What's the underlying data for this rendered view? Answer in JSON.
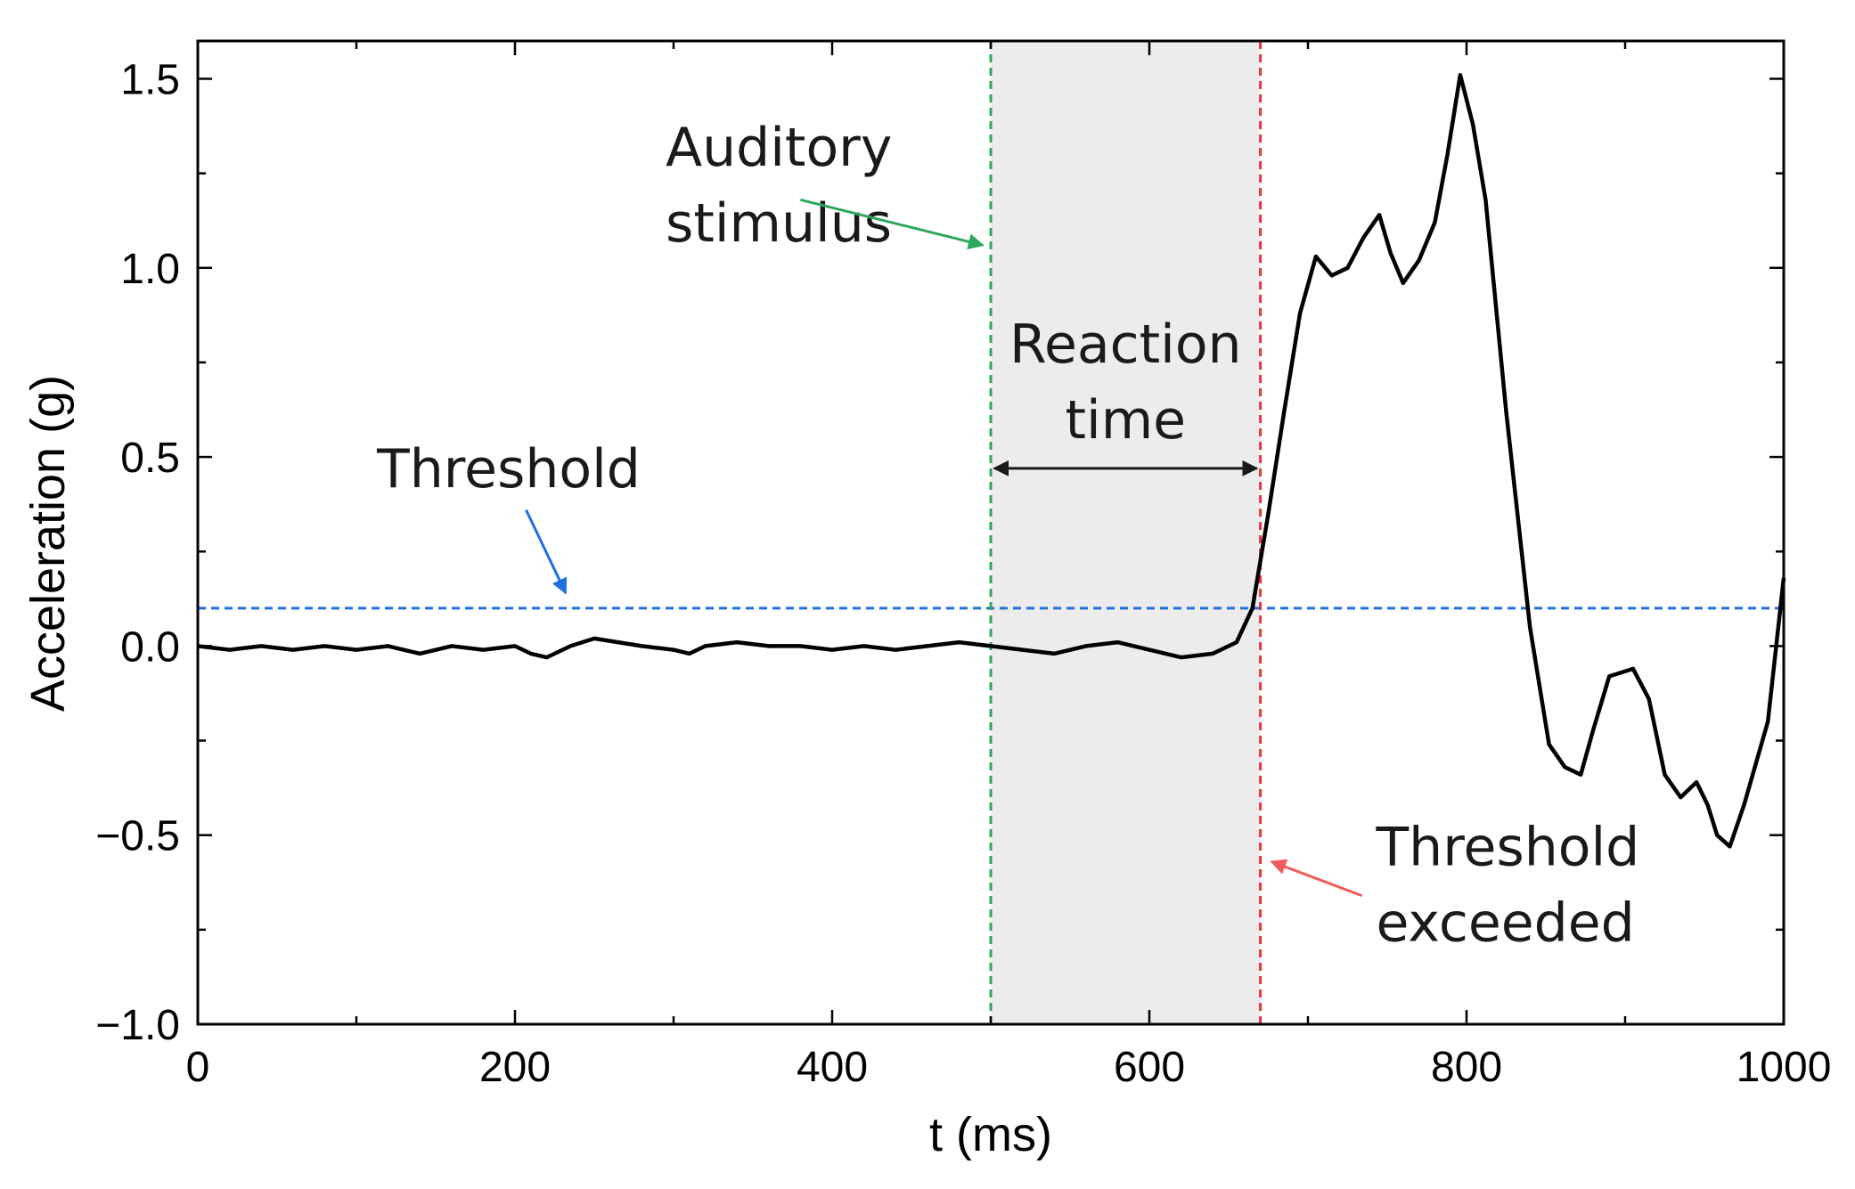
{
  "chart_data": {
    "type": "line",
    "title": "",
    "xlabel": "t (ms)",
    "ylabel": "Acceleration (g)",
    "xlim": [
      0,
      1000
    ],
    "ylim": [
      -1.0,
      1.6
    ],
    "xticks": [
      0,
      200,
      400,
      600,
      800,
      1000
    ],
    "xtick_labels": [
      "0",
      "200",
      "400",
      "600",
      "800",
      "1000"
    ],
    "yticks": [
      -1.0,
      -0.5,
      0.0,
      0.5,
      1.0,
      1.5
    ],
    "ytick_labels": [
      "−1.0",
      "−0.5",
      "0.0",
      "0.5",
      "1.0",
      "1.5"
    ],
    "x_minor_step": 100,
    "y_minor_step": 0.25,
    "grid": false,
    "series": [
      {
        "name": "Acceleration",
        "color": "#000000",
        "x": [
          0,
          20,
          40,
          60,
          80,
          100,
          120,
          140,
          160,
          180,
          200,
          210,
          220,
          235,
          250,
          265,
          280,
          300,
          310,
          320,
          340,
          360,
          380,
          400,
          420,
          440,
          460,
          480,
          500,
          520,
          540,
          560,
          580,
          600,
          620,
          640,
          655,
          665,
          675,
          685,
          695,
          705,
          715,
          725,
          735,
          745,
          752,
          760,
          770,
          780,
          788,
          796,
          804,
          812,
          825,
          840,
          852,
          862,
          872,
          880,
          890,
          905,
          915,
          925,
          935,
          945,
          952,
          958,
          966,
          975,
          990,
          1000
        ],
        "y": [
          0.0,
          -0.01,
          0.0,
          -0.01,
          0.0,
          -0.01,
          0.0,
          -0.02,
          0.0,
          -0.01,
          0.0,
          -0.02,
          -0.03,
          0.0,
          0.02,
          0.01,
          0.0,
          -0.01,
          -0.02,
          0.0,
          0.01,
          0.0,
          0.0,
          -0.01,
          0.0,
          -0.01,
          0.0,
          0.01,
          0.0,
          -0.01,
          -0.02,
          0.0,
          0.01,
          -0.01,
          -0.03,
          -0.02,
          0.01,
          0.1,
          0.35,
          0.62,
          0.88,
          1.03,
          0.98,
          1.0,
          1.08,
          1.14,
          1.04,
          0.96,
          1.02,
          1.12,
          1.3,
          1.51,
          1.38,
          1.18,
          0.62,
          0.05,
          -0.26,
          -0.32,
          -0.34,
          -0.22,
          -0.08,
          -0.06,
          -0.14,
          -0.34,
          -0.4,
          -0.36,
          -0.42,
          -0.5,
          -0.53,
          -0.42,
          -0.2,
          0.18
        ]
      }
    ],
    "reference_lines": [
      {
        "name": "threshold-line",
        "orientation": "horizontal",
        "value": 0.1,
        "color": "#1f6fe0",
        "style": "dashed"
      },
      {
        "name": "stimulus-line",
        "orientation": "vertical",
        "value": 500,
        "color": "#2ba85a",
        "style": "dashed"
      },
      {
        "name": "exceeded-line",
        "orientation": "vertical",
        "value": 670,
        "color": "#e8343a",
        "style": "dashed"
      }
    ],
    "shaded_region": {
      "x_start": 500,
      "x_end": 670,
      "color": "#ececec"
    },
    "reaction_arrow": {
      "x_start": 500,
      "x_end": 670,
      "y": 0.47,
      "color": "#1a1a1a"
    },
    "annotations": [
      {
        "name": "auditory-stimulus-label",
        "lines": [
          "Auditory",
          "stimulus"
        ],
        "x": 295,
        "y": [
          1.27,
          1.07
        ],
        "anchor": "start",
        "arrow": {
          "from": [
            380,
            1.18
          ],
          "to": [
            495,
            1.06
          ],
          "color": "#2ba85a"
        }
      },
      {
        "name": "reaction-time-label",
        "lines": [
          "Reaction",
          "time"
        ],
        "x": 585,
        "y": [
          0.75,
          0.55
        ],
        "anchor": "middle"
      },
      {
        "name": "threshold-label",
        "lines": [
          "Threshold"
        ],
        "x": 113,
        "y": [
          0.42
        ],
        "anchor": "start",
        "arrow": {
          "from": [
            207,
            0.36
          ],
          "to": [
            232,
            0.14
          ],
          "color": "#1f6fe0"
        }
      },
      {
        "name": "threshold-exceeded-label",
        "lines": [
          "Threshold",
          "exceeded"
        ],
        "x": 743,
        "y": [
          -0.58,
          -0.78
        ],
        "anchor": "start",
        "arrow": {
          "from": [
            734,
            -0.66
          ],
          "to": [
            677,
            -0.57
          ],
          "color": "#f05a5a"
        }
      }
    ]
  }
}
